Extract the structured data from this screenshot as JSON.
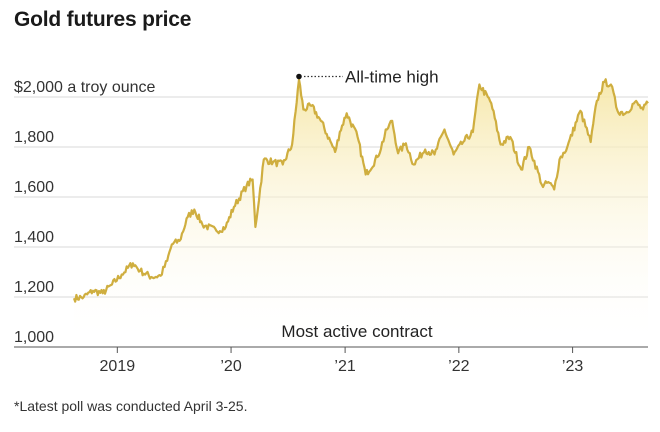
{
  "chart_data": {
    "type": "area",
    "title": "Gold futures price",
    "ylabel": "$2,000 a troy ounce",
    "ylim": [
      1000,
      2100
    ],
    "yticks": [
      {
        "value": 2000,
        "label": "$2,000 a troy ounce"
      },
      {
        "value": 1800,
        "label": "1,800"
      },
      {
        "value": 1600,
        "label": "1,600"
      },
      {
        "value": 1400,
        "label": "1,400"
      },
      {
        "value": 1200,
        "label": "1,200"
      },
      {
        "value": 1000,
        "label": "1,000"
      }
    ],
    "xlim": [
      "2018-08-15",
      "2023-08-31"
    ],
    "xticks": [
      {
        "date": "2019-01-01",
        "label": "2019"
      },
      {
        "date": "2020-01-01",
        "label": "’20"
      },
      {
        "date": "2021-01-01",
        "label": "’21"
      },
      {
        "date": "2022-01-01",
        "label": "’22"
      },
      {
        "date": "2023-01-01",
        "label": "’23"
      }
    ],
    "series": [
      {
        "name": "",
        "color": "#cfae3f",
        "points": [
          [
            "2018-08-15",
            1195
          ],
          [
            "2018-09-15",
            1200
          ],
          [
            "2018-10-15",
            1225
          ],
          [
            "2018-11-15",
            1215
          ],
          [
            "2018-12-15",
            1250
          ],
          [
            "2019-01-15",
            1290
          ],
          [
            "2019-02-20",
            1335
          ],
          [
            "2019-03-15",
            1305
          ],
          [
            "2019-04-20",
            1280
          ],
          [
            "2019-05-20",
            1285
          ],
          [
            "2019-06-10",
            1345
          ],
          [
            "2019-06-25",
            1410
          ],
          [
            "2019-07-20",
            1425
          ],
          [
            "2019-08-15",
            1520
          ],
          [
            "2019-09-05",
            1550
          ],
          [
            "2019-10-01",
            1490
          ],
          [
            "2019-11-15",
            1465
          ],
          [
            "2019-12-15",
            1480
          ],
          [
            "2020-01-10",
            1560
          ],
          [
            "2020-02-20",
            1645
          ],
          [
            "2020-03-10",
            1670
          ],
          [
            "2020-03-19",
            1480
          ],
          [
            "2020-04-15",
            1750
          ],
          [
            "2020-05-15",
            1740
          ],
          [
            "2020-06-15",
            1730
          ],
          [
            "2020-07-15",
            1810
          ],
          [
            "2020-08-06",
            2070
          ],
          [
            "2020-08-20",
            1950
          ],
          [
            "2020-09-15",
            1965
          ],
          [
            "2020-10-15",
            1905
          ],
          [
            "2020-11-30",
            1780
          ],
          [
            "2020-12-15",
            1860
          ],
          [
            "2021-01-06",
            1935
          ],
          [
            "2021-02-10",
            1840
          ],
          [
            "2021-03-08",
            1690
          ],
          [
            "2021-04-15",
            1760
          ],
          [
            "2021-05-15",
            1870
          ],
          [
            "2021-06-01",
            1905
          ],
          [
            "2021-06-20",
            1775
          ],
          [
            "2021-07-15",
            1815
          ],
          [
            "2021-08-09",
            1730
          ],
          [
            "2021-09-15",
            1790
          ],
          [
            "2021-10-15",
            1770
          ],
          [
            "2021-11-16",
            1870
          ],
          [
            "2021-12-15",
            1770
          ],
          [
            "2022-01-15",
            1820
          ],
          [
            "2022-02-15",
            1860
          ],
          [
            "2022-03-08",
            2050
          ],
          [
            "2022-04-15",
            1975
          ],
          [
            "2022-05-15",
            1810
          ],
          [
            "2022-06-15",
            1840
          ],
          [
            "2022-07-20",
            1710
          ],
          [
            "2022-08-15",
            1800
          ],
          [
            "2022-09-28",
            1640
          ],
          [
            "2022-10-15",
            1660
          ],
          [
            "2022-11-03",
            1630
          ],
          [
            "2022-11-20",
            1750
          ],
          [
            "2022-12-15",
            1800
          ],
          [
            "2023-01-26",
            1945
          ],
          [
            "2023-02-28",
            1820
          ],
          [
            "2023-03-20",
            1985
          ],
          [
            "2023-04-13",
            2060
          ],
          [
            "2023-05-04",
            2050
          ],
          [
            "2023-05-25",
            1945
          ],
          [
            "2023-06-20",
            1935
          ],
          [
            "2023-07-20",
            1980
          ],
          [
            "2023-08-15",
            1950
          ],
          [
            "2023-08-31",
            1975
          ]
        ]
      }
    ],
    "annotations": [
      {
        "text": "All-time high",
        "date": "2020-08-06",
        "value": 2070
      },
      {
        "text": "Most active contract"
      }
    ],
    "grid": true,
    "fill_gradient": [
      "#f6e7a8",
      "#ffffff"
    ]
  },
  "footnote": "*Latest poll was conducted April 3-25."
}
